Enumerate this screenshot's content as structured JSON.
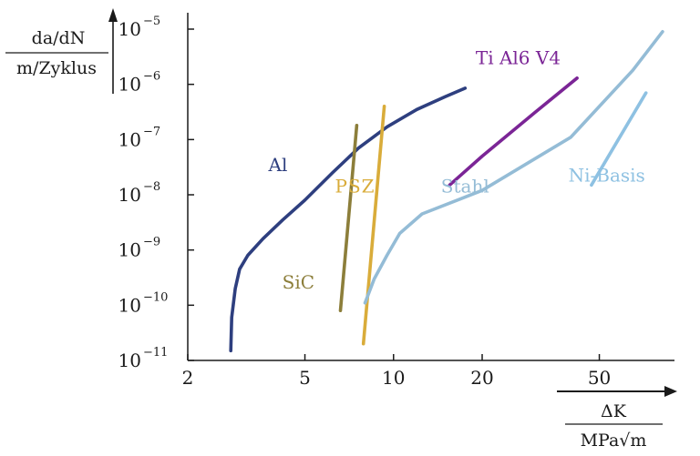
{
  "chart_data": {
    "type": "line",
    "title": "",
    "ylabel": {
      "numerator": "da/dN",
      "denominator": "m/Zyklus"
    },
    "xlabel": {
      "numerator": "ΔK",
      "denominator": "MPa√m"
    },
    "x_scale": "log",
    "y_scale": "log",
    "xlim": [
      2,
      90
    ],
    "ylim": [
      1e-11,
      1e-05
    ],
    "x_ticks": [
      2,
      5,
      10,
      20,
      50
    ],
    "x_tick_labels": [
      "2",
      "5",
      "10",
      "20",
      "50"
    ],
    "y_ticks": [
      1e-11,
      1e-10,
      1e-09,
      1e-08,
      1e-07,
      1e-06,
      1e-05
    ],
    "y_tick_labels": [
      {
        "base": "10",
        "exp": "−11"
      },
      {
        "base": "10",
        "exp": "−10"
      },
      {
        "base": "10",
        "exp": "−9"
      },
      {
        "base": "10",
        "exp": "−8"
      },
      {
        "base": "10",
        "exp": "−7"
      },
      {
        "base": "10",
        "exp": "−6"
      },
      {
        "base": "10",
        "exp": "−5"
      }
    ],
    "grid": false,
    "legend": "none",
    "series": [
      {
        "name": "Al",
        "color": "#2e3f7f",
        "points": [
          [
            2.8,
            1.5e-11
          ],
          [
            2.82,
            6e-11
          ],
          [
            2.9,
            2e-10
          ],
          [
            3.0,
            4.5e-10
          ],
          [
            3.2,
            8e-10
          ],
          [
            3.6,
            1.6e-09
          ],
          [
            4.2,
            3.5e-09
          ],
          [
            5.0,
            8e-09
          ],
          [
            6.2,
            2.5e-08
          ],
          [
            7.6,
            7e-08
          ],
          [
            9.5,
            1.7e-07
          ],
          [
            12,
            3.5e-07
          ],
          [
            15,
            6e-07
          ],
          [
            17.5,
            8.5e-07
          ]
        ]
      },
      {
        "name": "SiC",
        "color": "#8c7e3a",
        "points": [
          [
            6.6,
            8e-11
          ],
          [
            7.5,
            1.8e-07
          ]
        ]
      },
      {
        "name": "PSZ",
        "color": "#d9ac3a",
        "points": [
          [
            7.9,
            2e-11
          ],
          [
            9.3,
            4e-07
          ]
        ]
      },
      {
        "name": "Stahl",
        "color": "#94bcd6",
        "points": [
          [
            8.0,
            1.1e-10
          ],
          [
            8.6,
            3e-10
          ],
          [
            9.5,
            8e-10
          ],
          [
            10.5,
            2e-09
          ],
          [
            12.5,
            4.5e-09
          ],
          [
            20,
            1.2e-08
          ],
          [
            40,
            1.1e-07
          ],
          [
            65,
            1.8e-06
          ],
          [
            82,
            9e-06
          ]
        ]
      },
      {
        "name": "Ti Al6 V4",
        "color": "#7b2596",
        "points": [
          [
            15.5,
            1.5e-08
          ],
          [
            20,
            5e-08
          ],
          [
            30,
            3e-07
          ],
          [
            42,
            1.3e-06
          ]
        ]
      },
      {
        "name": "Ni-Basis",
        "color": "#8ec1e2",
        "points": [
          [
            47,
            1.5e-08
          ],
          [
            58,
            1e-07
          ],
          [
            72,
            7e-07
          ]
        ]
      }
    ],
    "annotations": [
      {
        "text": "Al",
        "series": "Al",
        "color": "#2e3f7f",
        "at": [
          4.05,
          2.7e-08
        ]
      },
      {
        "text": "SiC",
        "series": "SiC",
        "color": "#8c7e3a",
        "at": [
          4.75,
          2e-10
        ]
      },
      {
        "text": "PSZ",
        "series": "PSZ",
        "color": "#d9ac3a",
        "at": [
          7.4,
          1.1e-08
        ]
      },
      {
        "text": "Stahl",
        "series": "Stahl",
        "color": "#94bcd6",
        "at": [
          17.5,
          1.1e-08
        ]
      },
      {
        "text": "Ti Al6 V4",
        "series": "Ti Al6 V4",
        "color": "#7b2596",
        "at": [
          26.5,
          2.3e-06
        ]
      },
      {
        "text": "Ni-Basis",
        "series": "Ni-Basis",
        "color": "#8ec1e2",
        "at": [
          53,
          1.75e-08
        ]
      }
    ]
  }
}
